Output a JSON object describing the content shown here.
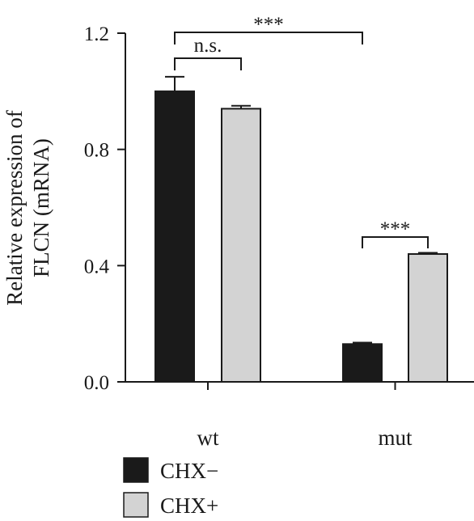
{
  "chart_data": {
    "type": "bar",
    "categories": [
      "wt",
      "mut"
    ],
    "series": [
      {
        "name": "CHX−",
        "values": [
          1.0,
          0.13
        ],
        "errors": [
          0.05,
          0.005
        ]
      },
      {
        "name": "CHX+",
        "values": [
          0.94,
          0.44
        ],
        "errors": [
          0.01,
          0.004
        ]
      }
    ],
    "ylabel_lines": [
      "Relative expression of",
      "FLCN (mRNA)"
    ],
    "ylim": [
      0,
      1.2
    ],
    "yticks": [
      "0.0",
      "0.4",
      "0.8",
      "1.2"
    ],
    "legend": {
      "placement": "bottom-left"
    },
    "annotations": [
      {
        "label": "***",
        "between": "wt CHX− to mut CHX−"
      },
      {
        "label": "n.s.",
        "between": "wt CHX− to wt CHX+"
      },
      {
        "label": "***",
        "between": "mut CHX− to mut CHX+"
      }
    ],
    "colors": {
      "CHX−": "#1a1a1a",
      "CHX+": "#d3d3d3",
      "axis": "#1a1a1a"
    },
    "grid": false
  }
}
